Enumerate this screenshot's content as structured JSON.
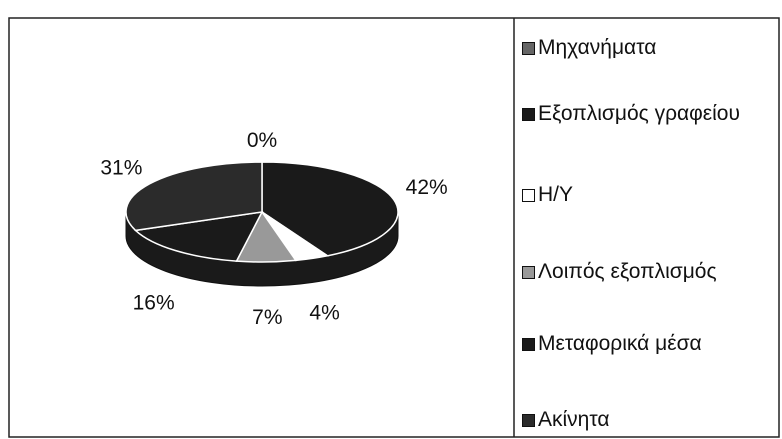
{
  "chart_data": {
    "type": "pie",
    "categories": [
      "Μηχανήματα",
      "Εξοπλισμός γραφείου",
      "Η/Υ",
      "Λοιπός εξοπλισμός",
      "Μεταφορικά μέσα",
      "Ακίνητα"
    ],
    "values": [
      0,
      42,
      4,
      7,
      16,
      31
    ],
    "value_labels": [
      "0%",
      "42%",
      "4%",
      "7%",
      "16%",
      "31%"
    ],
    "colors": [
      "#666666",
      "#1a1a1a",
      "#ffffff",
      "#999999",
      "#1a1a1a",
      "#2b2b2b"
    ],
    "legend": "right"
  }
}
